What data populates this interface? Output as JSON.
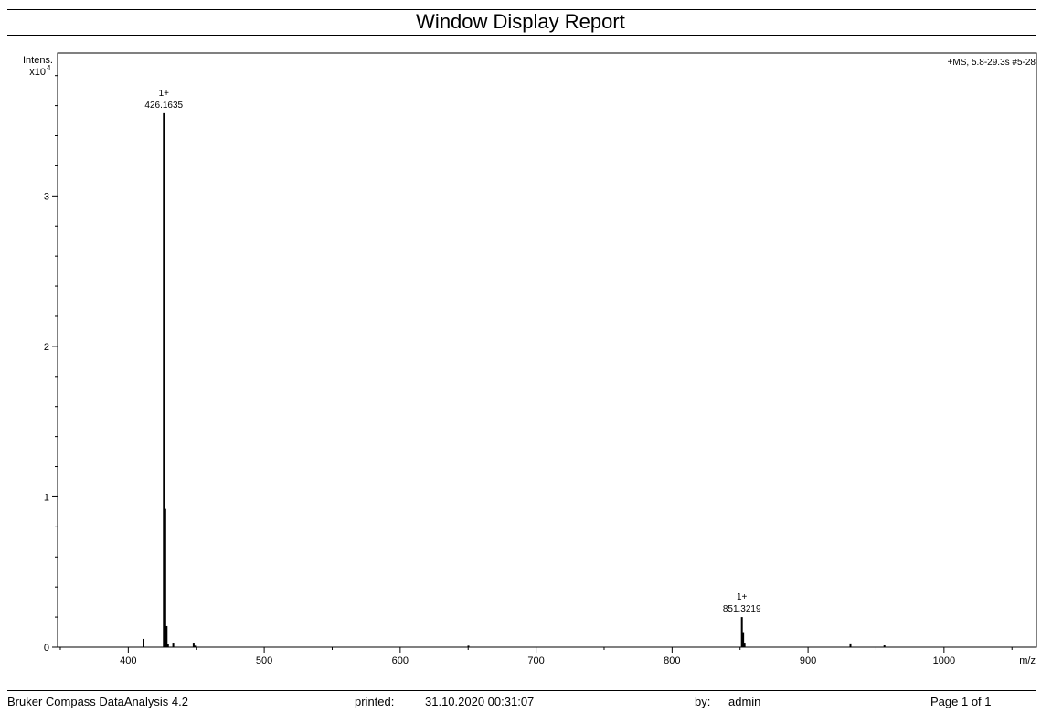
{
  "report": {
    "title": "Window Display Report"
  },
  "chart_data": {
    "type": "bar",
    "annotation_header": "+MS, 5.8-29.3s #5-28",
    "xlabel": "m/z",
    "ylabel": "Intens.",
    "yscale_label": "x10",
    "yscale_exponent": "4",
    "xlim": [
      348,
      1068
    ],
    "ylim": [
      0,
      3.95
    ],
    "x_ticks": [
      400,
      500,
      600,
      700,
      800,
      900,
      1000
    ],
    "y_ticks": [
      0,
      1,
      2,
      3
    ],
    "grid": false,
    "peaks": [
      {
        "mz": 411.2,
        "intensity": 0.055
      },
      {
        "mz": 426.1635,
        "intensity": 3.55
      },
      {
        "mz": 427.2,
        "intensity": 0.92
      },
      {
        "mz": 428.2,
        "intensity": 0.14
      },
      {
        "mz": 429.2,
        "intensity": 0.02
      },
      {
        "mz": 433.1,
        "intensity": 0.03
      },
      {
        "mz": 448.1,
        "intensity": 0.03
      },
      {
        "mz": 449.1,
        "intensity": 0.01
      },
      {
        "mz": 650.2,
        "intensity": 0.01
      },
      {
        "mz": 851.3219,
        "intensity": 0.2
      },
      {
        "mz": 852.3,
        "intensity": 0.1
      },
      {
        "mz": 853.3,
        "intensity": 0.03
      },
      {
        "mz": 931.2,
        "intensity": 0.025
      },
      {
        "mz": 956.2,
        "intensity": 0.012
      }
    ],
    "peak_labels": [
      {
        "mz": 426.1635,
        "intensity": 3.55,
        "charge": "1+",
        "label": "426.1635"
      },
      {
        "mz": 851.3219,
        "intensity": 0.2,
        "charge": "1+",
        "label": "851.3219"
      }
    ]
  },
  "footer": {
    "software": "Bruker Compass DataAnalysis 4.2",
    "printed_label": "printed:",
    "printed_value": "31.10.2020 00:31:07",
    "by_label": "by:",
    "by_value": "admin",
    "page": "Page 1 of 1"
  }
}
